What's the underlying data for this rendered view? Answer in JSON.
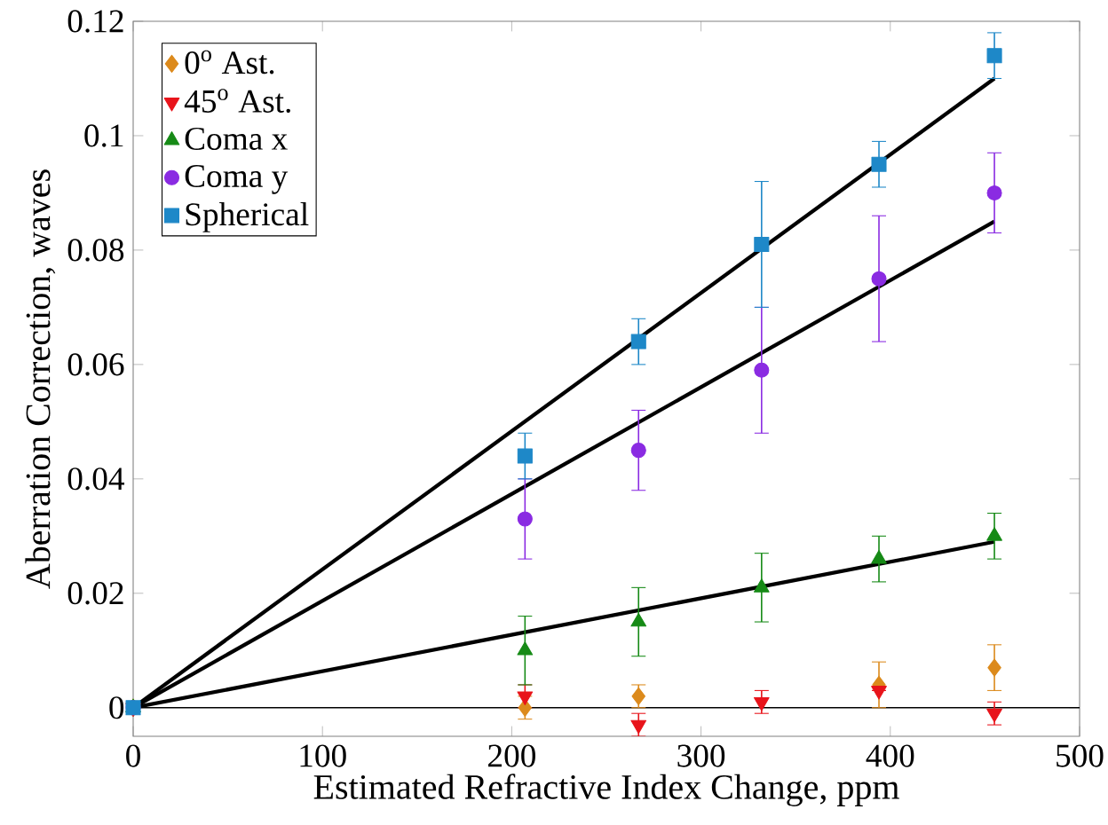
{
  "chart_data": {
    "type": "scatter",
    "xlabel": "Estimated Refractive Index Change, ppm",
    "ylabel": "Aberration Correction, waves",
    "xlim": [
      0,
      500
    ],
    "ylim": [
      -0.005,
      0.12
    ],
    "xticks": [
      0,
      100,
      200,
      300,
      400,
      500
    ],
    "yticks": [
      0,
      {
        "value": 0.02,
        "label": "0.02"
      },
      {
        "value": 0.04,
        "label": "0.04"
      },
      {
        "value": 0.06,
        "label": "0.06"
      },
      {
        "value": 0.08,
        "label": "0.08"
      },
      {
        "value": 0.1,
        "label": "0.1"
      },
      {
        "value": 0.12,
        "label": "0.12"
      }
    ],
    "grid": false,
    "legend": "top left",
    "ref_lines": [
      {
        "axis": "y",
        "value": 0,
        "color": "#000000"
      }
    ],
    "series": [
      {
        "name": "0$^{o}$ Ast.",
        "color": "#dc8a1c",
        "marker": "diamond",
        "x": [
          0,
          207,
          267,
          332,
          394,
          455
        ],
        "values": [
          0,
          0,
          0.002,
          null,
          0.004,
          0.007
        ],
        "errors": [
          null,
          0.002,
          0.002,
          null,
          0.004,
          0.004
        ]
      },
      {
        "name": "45$^{o}$ Ast.",
        "color": "#e8141b",
        "marker": "triangle down",
        "x": [
          0,
          207,
          267,
          332,
          394,
          455
        ],
        "values": [
          0,
          0.002,
          -0.003,
          0.001,
          0.003,
          -0.001
        ],
        "errors": [
          null,
          0.002,
          0.002,
          0.002,
          null,
          0.002
        ]
      },
      {
        "name": "Coma x",
        "color": "#168a16",
        "marker": "triangle",
        "x": [
          0,
          207,
          267,
          332,
          394,
          455
        ],
        "values": [
          0,
          0.01,
          0.015,
          0.021,
          0.026,
          0.03
        ],
        "errors": [
          null,
          0.006,
          0.006,
          0.006,
          0.004,
          0.004
        ]
      },
      {
        "name": "Coma y",
        "color": "#8a2be2",
        "marker": "circle",
        "x": [
          0,
          207,
          267,
          332,
          394,
          455
        ],
        "values": [
          0,
          0.033,
          0.045,
          0.059,
          0.075,
          0.09
        ],
        "errors": [
          null,
          0.007,
          0.007,
          0.011,
          0.011,
          0.007
        ]
      },
      {
        "name": "Spherical",
        "color": "#1e88c8",
        "marker": "square",
        "x": [
          0,
          207,
          267,
          332,
          394,
          455
        ],
        "values": [
          0,
          0.044,
          0.064,
          0.081,
          0.095,
          0.114
        ],
        "errors": [
          null,
          0.004,
          0.004,
          0.011,
          0.004,
          0.004
        ]
      },
      {
        "type": "line",
        "color": "#000000",
        "marker": "none",
        "x": [
          0,
          455
        ],
        "values": [
          0,
          0.11
        ]
      },
      {
        "type": "line",
        "color": "#000000",
        "marker": "none",
        "x": [
          0,
          455
        ],
        "values": [
          0,
          0.085
        ]
      },
      {
        "type": "line",
        "color": "#000000",
        "marker": "none",
        "x": [
          0,
          455
        ],
        "values": [
          0,
          0.029
        ]
      }
    ]
  }
}
